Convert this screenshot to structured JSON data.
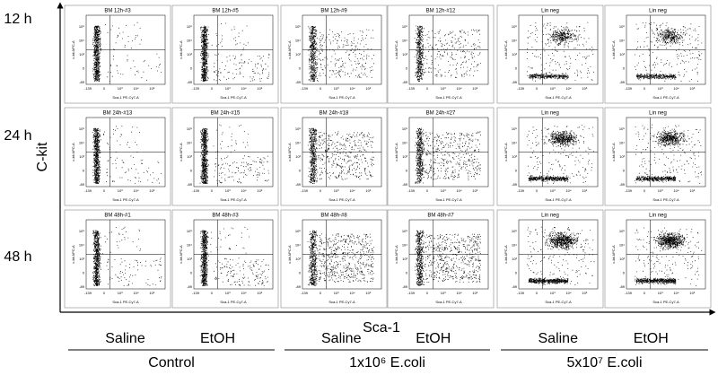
{
  "y_axis_label": "C-kit",
  "x_axis_label": "Sca-1",
  "rows": [
    "12 h",
    "24 h",
    "48 h"
  ],
  "groups": [
    {
      "name": "Control",
      "columns": [
        "Saline",
        "EtOH"
      ]
    },
    {
      "name": "1x10⁶ E.coli",
      "columns": [
        "Saline",
        "EtOH"
      ]
    },
    {
      "name": "5x10⁷ E.coli",
      "columns": [
        "Saline",
        "EtOH"
      ]
    }
  ],
  "panels": [
    [
      "BM 12h-#3",
      "BM 12h-#5",
      "BM 12h-#9",
      "BM 12h-#12",
      "Lin neg",
      "Lin neg"
    ],
    [
      "BM 24h-#13",
      "BM 24h-#15",
      "BM 24h-#18",
      "BM 24h-#27",
      "Lin neg",
      "Lin neg"
    ],
    [
      "BM 48h-#1",
      "BM 48h-#3",
      "BM 48h-#8",
      "BM 48h-#7",
      "Lin neg",
      "Lin neg"
    ]
  ],
  "panel_axes": {
    "x_label": "Sca-1 PE-Cy7-A",
    "y_label": "c-kit APC-A",
    "x_ticks": [
      "-139",
      "0",
      "10³",
      "10⁴",
      "10⁵"
    ],
    "y_ticks": [
      "-89",
      "0",
      "10³",
      "10⁴",
      "10⁵"
    ]
  }
}
